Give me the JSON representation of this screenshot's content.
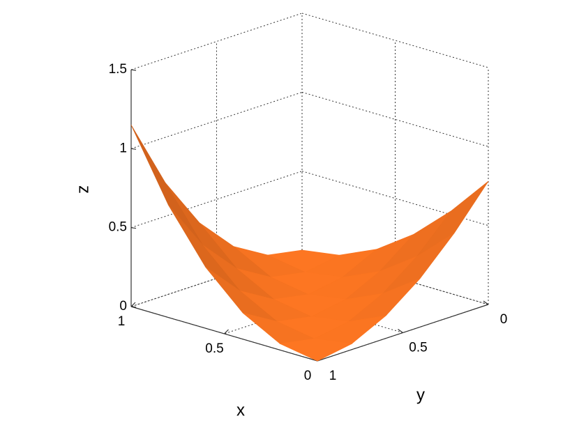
{
  "chart_data": {
    "type": "surface",
    "x": [
      0,
      0.2,
      0.4,
      0.6,
      0.8,
      1
    ],
    "y": [
      0,
      0.2,
      0.4,
      0.6,
      0.8,
      1
    ],
    "z": [
      [
        0.78,
        0.523,
        0.307,
        0.143,
        0.037,
        0
      ],
      [
        0.523,
        0.307,
        0.143,
        0.037,
        0,
        0.04
      ],
      [
        0.307,
        0.143,
        0.037,
        0,
        0.04,
        0.166
      ],
      [
        0.143,
        0.037,
        0,
        0.04,
        0.166,
        0.387
      ],
      [
        0.037,
        0,
        0.04,
        0.166,
        0.387,
        0.712
      ],
      [
        0,
        0.04,
        0.166,
        0.387,
        0.712,
        1.15
      ]
    ],
    "xlim": [
      0,
      1
    ],
    "ylim": [
      0,
      1
    ],
    "zlim": [
      0,
      1.5
    ],
    "xticks": [
      0,
      0.5,
      1
    ],
    "yticks": [
      0,
      0.5,
      1
    ],
    "zticks": [
      0,
      0.5,
      1,
      1.5
    ],
    "xlabel": "x",
    "ylabel": "y",
    "zlabel": "z",
    "color": "#f07020",
    "grid": true
  }
}
